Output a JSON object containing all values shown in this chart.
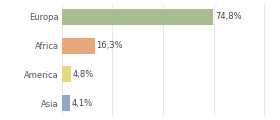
{
  "categories": [
    "Europa",
    "Africa",
    "America",
    "Asia"
  ],
  "values": [
    74.8,
    16.3,
    4.8,
    4.1
  ],
  "labels": [
    "74,8%",
    "16,3%",
    "4,8%",
    "4,1%"
  ],
  "bar_colors": [
    "#a8bc8f",
    "#e8a87c",
    "#e8d87c",
    "#8fa8c8"
  ],
  "background_color": "#ffffff",
  "xlim": [
    0,
    105
  ],
  "label_fontsize": 6.0,
  "tick_fontsize": 6.0,
  "bar_height": 0.55,
  "grid_color": "#dddddd",
  "grid_ticks": [
    0,
    25,
    50,
    75,
    100
  ]
}
